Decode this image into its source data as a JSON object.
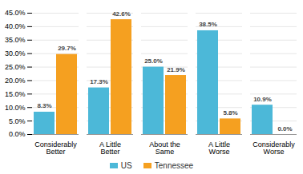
{
  "chart_data": {
    "type": "bar",
    "categories": [
      "Considerably Better",
      "A Little Better",
      "About the Same",
      "A Little Worse",
      "Considerably Worse"
    ],
    "series": [
      {
        "name": "US",
        "color": "#4cb8d8",
        "values": [
          8.3,
          17.3,
          25.0,
          38.5,
          10.9
        ],
        "value_labels": [
          "8.3%",
          "17.3%",
          "25.0%",
          "38.5%",
          "10.9%"
        ]
      },
      {
        "name": "Tennessee",
        "color": "#f5a020",
        "values": [
          29.7,
          42.6,
          21.9,
          5.8,
          0.0
        ],
        "value_labels": [
          "29.7%",
          "42.6%",
          "21.9%",
          "5.8%",
          "0.0%"
        ]
      }
    ],
    "ylim": [
      0,
      45
    ],
    "yticks": [
      {
        "value": 0,
        "label": "0.0%"
      },
      {
        "value": 5,
        "label": "5.0%"
      },
      {
        "value": 10,
        "label": "10.0%"
      },
      {
        "value": 15,
        "label": "15.0%"
      },
      {
        "value": 20,
        "label": "20.0%"
      },
      {
        "value": 25,
        "label": "25.0%"
      },
      {
        "value": 30,
        "label": "30.0%"
      },
      {
        "value": 35,
        "label": "35.0%"
      },
      {
        "value": 40,
        "label": "40.0%"
      },
      {
        "value": 45,
        "label": "45.0%"
      }
    ],
    "grid": true,
    "data_labels": true,
    "legend": "bottom"
  }
}
